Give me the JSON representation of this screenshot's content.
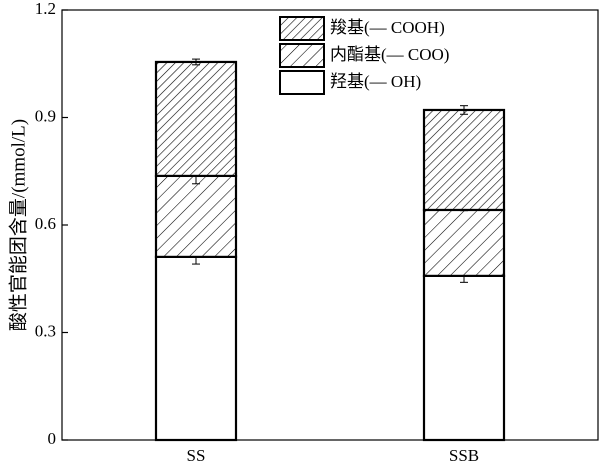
{
  "chart_data": {
    "type": "stacked_bar",
    "y_label": "酸性官能团含量/(mmol/L)",
    "categories": [
      "SS",
      "SSB"
    ],
    "series": [
      {
        "name": "羟基(— OH)",
        "color": "#000000",
        "hatch": "\\",
        "values": [
          0.511,
          0.458
        ],
        "errors": [
          0.02,
          0.018
        ]
      },
      {
        "name": "内酯基(— COO)",
        "color": "#000000",
        "hatch": "/",
        "values": [
          0.226,
          0.184
        ],
        "errors": [
          0.022,
          0.002
        ]
      },
      {
        "name": "羧基(— COOH)",
        "color": "#000000",
        "hatch": "//",
        "values": [
          0.318,
          0.279
        ],
        "errors": [
          0.008,
          0.012
        ]
      }
    ],
    "ylim": [
      0,
      1.2
    ],
    "yticks": [
      0,
      0.3,
      0.6,
      0.9,
      1.2
    ],
    "grid": false,
    "legend": "upper center"
  }
}
